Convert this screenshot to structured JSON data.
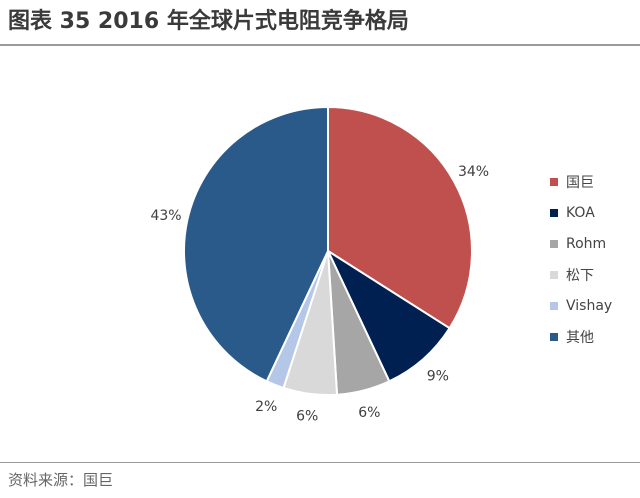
{
  "header": {
    "title": "图表 35 2016 年全球片式电阻竞争格局"
  },
  "footer": {
    "source": "资料来源：国巨"
  },
  "chart_data": {
    "type": "pie",
    "title": "图表 35 2016 年全球片式电阻竞争格局",
    "start_angle_deg": 0,
    "direction": "clockwise",
    "legend_position": "right",
    "slices": [
      {
        "name": "国巨",
        "value": 34,
        "label": "34%",
        "color": "#c0504d"
      },
      {
        "name": "KOA",
        "value": 9,
        "label": "9%",
        "color": "#002052"
      },
      {
        "name": "Rohm",
        "value": 6,
        "label": "6%",
        "color": "#a6a6a6"
      },
      {
        "name": "松下",
        "value": 6,
        "label": "6%",
        "color": "#d9d9d9"
      },
      {
        "name": "Vishay",
        "value": 2,
        "label": "2%",
        "color": "#b4c7e7"
      },
      {
        "name": "其他",
        "value": 43,
        "label": "43%",
        "color": "#2a5a8a"
      }
    ]
  }
}
